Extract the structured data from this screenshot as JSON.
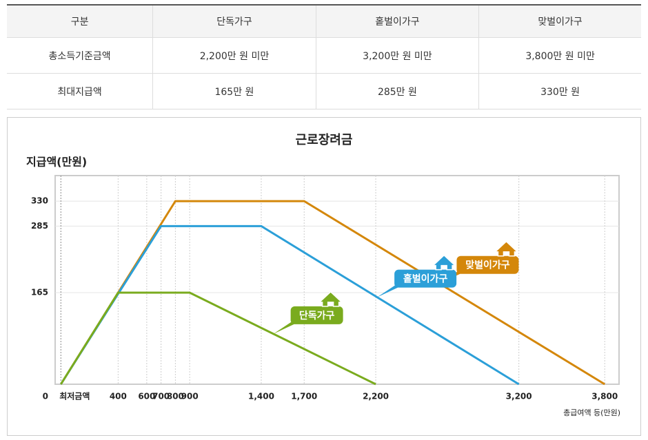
{
  "table": {
    "header": [
      "구분",
      "단독가구",
      "홑벌이가구",
      "맞벌이가구"
    ],
    "rows": [
      [
        "총소득기준금액",
        "2,200만 원 미만",
        "3,200만 원 미만",
        "3,800만 원 미만"
      ],
      [
        "최대지급액",
        "165만 원",
        "285만 원",
        "330만 원"
      ]
    ]
  },
  "chart_data": {
    "type": "line",
    "title": "근로장려금",
    "y_label": "지급액(만원)",
    "x_label": "총급여액 등(만원)",
    "xlim": [
      -40,
      3900
    ],
    "ylim": [
      0,
      376
    ],
    "xticks": [
      {
        "value": 0,
        "label": "최저금액"
      },
      400,
      600,
      700,
      800,
      900,
      {
        "value": 1400,
        "label": "1,400"
      },
      {
        "value": 1700,
        "label": "1,700"
      },
      {
        "value": 2200,
        "label": "2,200"
      },
      {
        "value": 3200,
        "label": "3,200"
      },
      {
        "value": 3800,
        "label": "3,800"
      }
    ],
    "yticks": [
      0,
      165,
      285,
      330
    ],
    "series": [
      {
        "name": "맞벌이가구",
        "color": "#d4870a",
        "x": [
          0,
          800,
          1700,
          3800
        ],
        "values": [
          0,
          330,
          330,
          0
        ]
      },
      {
        "name": "홑벌이가구",
        "color": "#2b9fd8",
        "x": [
          0,
          700,
          1400,
          3200
        ],
        "values": [
          0,
          285,
          285,
          0
        ]
      },
      {
        "name": "단독가구",
        "color": "#7aab1e",
        "x": [
          0,
          400,
          900,
          2200
        ],
        "values": [
          0,
          165,
          165,
          0
        ]
      }
    ]
  }
}
